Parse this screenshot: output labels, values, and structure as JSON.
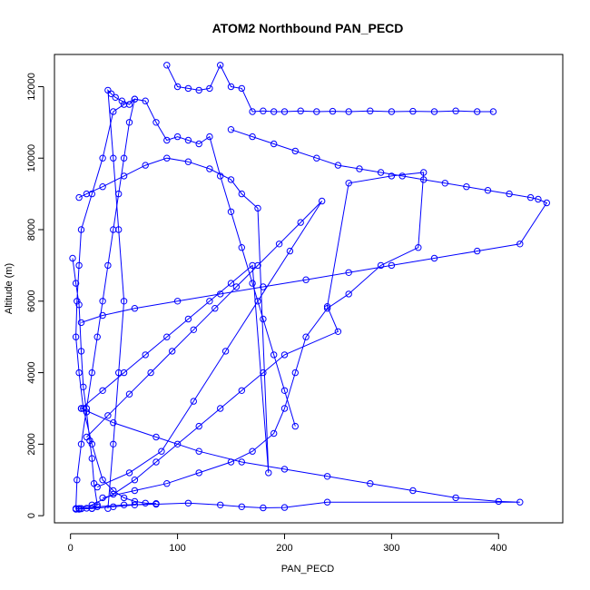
{
  "chart_data": {
    "type": "line",
    "title": "ATOM2 Northbound PAN_PECD",
    "xlabel": "PAN_PECD",
    "ylabel": "Altitude (m)",
    "xlim": [
      -15,
      460
    ],
    "ylim": [
      -200,
      12900
    ],
    "xticks": [
      0,
      100,
      200,
      300,
      400
    ],
    "yticks": [
      0,
      2000,
      4000,
      6000,
      8000,
      10000,
      12000
    ],
    "grid": false,
    "legend": "none",
    "series_color": "#0000ff",
    "markers": "open-circle",
    "series": [
      {
        "x": [
          2,
          5,
          8,
          10,
          12,
          15,
          18,
          20,
          22,
          25,
          20,
          15,
          10,
          8,
          5,
          6,
          10,
          15,
          20,
          25,
          30,
          35,
          40,
          45,
          50,
          55,
          60,
          50,
          40,
          30,
          20,
          10,
          8,
          6,
          5,
          8,
          12,
          20,
          30,
          40,
          50,
          60,
          70,
          80,
          60,
          40,
          20,
          10,
          8
        ],
        "y": [
          7200,
          6500,
          5900,
          4600,
          3600,
          2900,
          2100,
          1600,
          900,
          300,
          200,
          210,
          200,
          190,
          200,
          1000,
          2000,
          3000,
          4000,
          5000,
          6000,
          7000,
          8000,
          9000,
          10000,
          11000,
          11650,
          11500,
          11300,
          10000,
          9000,
          8000,
          7000,
          6000,
          5000,
          4000,
          3000,
          2000,
          1000,
          700,
          500,
          400,
          350,
          340,
          300,
          250,
          200,
          190,
          180
        ]
      },
      {
        "x": [
          35,
          40,
          45,
          50,
          45,
          40,
          35,
          38,
          42,
          48,
          55,
          60,
          70,
          80,
          90,
          100,
          110,
          120,
          130,
          140,
          150,
          160,
          170,
          180,
          190,
          200,
          210
        ],
        "y": [
          200,
          2000,
          4000,
          6000,
          8000,
          10000,
          11900,
          11800,
          11700,
          11600,
          11500,
          11650,
          11600,
          11000,
          10500,
          10600,
          10500,
          10400,
          10600,
          9500,
          8500,
          7500,
          6500,
          5500,
          4500,
          3500,
          2500
        ]
      },
      {
        "x": [
          90,
          100,
          110,
          120,
          130,
          140,
          150,
          160,
          170,
          180,
          190,
          200,
          215,
          230,
          245,
          260,
          280,
          300,
          320,
          340,
          360,
          380,
          395
        ],
        "y": [
          12600,
          12000,
          11950,
          11900,
          11950,
          12600,
          12000,
          11950,
          11300,
          11320,
          11300,
          11300,
          11320,
          11300,
          11310,
          11300,
          11320,
          11300,
          11310,
          11300,
          11320,
          11300,
          11300
        ]
      },
      {
        "x": [
          150,
          170,
          190,
          210,
          230,
          250,
          270,
          290,
          310,
          330,
          350,
          370,
          390,
          410,
          430,
          437,
          445,
          420,
          380,
          340,
          300,
          260,
          220,
          180,
          140,
          100,
          60,
          30,
          10
        ],
        "y": [
          10800,
          10600,
          10400,
          10200,
          10000,
          9800,
          9700,
          9600,
          9500,
          9400,
          9300,
          9200,
          9100,
          9000,
          8900,
          8850,
          8750,
          7600,
          7400,
          7200,
          7000,
          6800,
          6600,
          6400,
          6200,
          6000,
          5800,
          5600,
          5400
        ]
      },
      {
        "x": [
          30,
          60,
          90,
          120,
          150,
          170,
          190,
          200,
          210,
          220,
          240,
          260,
          290,
          325,
          330,
          300,
          260,
          240,
          250,
          200,
          180,
          160,
          140,
          120,
          100,
          80,
          60,
          40,
          20,
          8
        ],
        "y": [
          500,
          700,
          900,
          1200,
          1500,
          1800,
          2300,
          3000,
          4000,
          5000,
          5800,
          6200,
          7000,
          7500,
          9600,
          9500,
          9300,
          5850,
          5150,
          4500,
          4000,
          3500,
          3000,
          2500,
          2000,
          1500,
          1000,
          600,
          300,
          200
        ]
      },
      {
        "x": [
          5,
          25,
          50,
          80,
          110,
          140,
          160,
          180,
          200,
          240,
          420,
          400,
          360,
          320,
          280,
          240,
          200,
          160,
          120,
          80,
          40,
          10
        ],
        "y": [
          180,
          250,
          300,
          320,
          350,
          300,
          250,
          220,
          230,
          380,
          380,
          400,
          500,
          700,
          900,
          1100,
          1300,
          1500,
          1800,
          2200,
          2600,
          3000
        ]
      },
      {
        "x": [
          10,
          30,
          50,
          70,
          90,
          110,
          130,
          150,
          170,
          185,
          175,
          160,
          150,
          130,
          110,
          90,
          70,
          50,
          30,
          15,
          8
        ],
        "y": [
          3000,
          3500,
          4000,
          4500,
          5000,
          5500,
          6000,
          6500,
          7000,
          1200,
          8600,
          9000,
          9400,
          9700,
          9900,
          10000,
          9800,
          9500,
          9200,
          9000,
          8900
        ]
      },
      {
        "x": [
          15,
          35,
          55,
          75,
          95,
          115,
          135,
          155,
          175,
          195,
          215,
          235,
          205,
          175,
          145,
          115,
          85,
          55,
          25
        ],
        "y": [
          2200,
          2800,
          3400,
          4000,
          4600,
          5200,
          5800,
          6400,
          7000,
          7600,
          8200,
          8800,
          7400,
          6000,
          4600,
          3200,
          1800,
          1200,
          800
        ]
      }
    ]
  }
}
